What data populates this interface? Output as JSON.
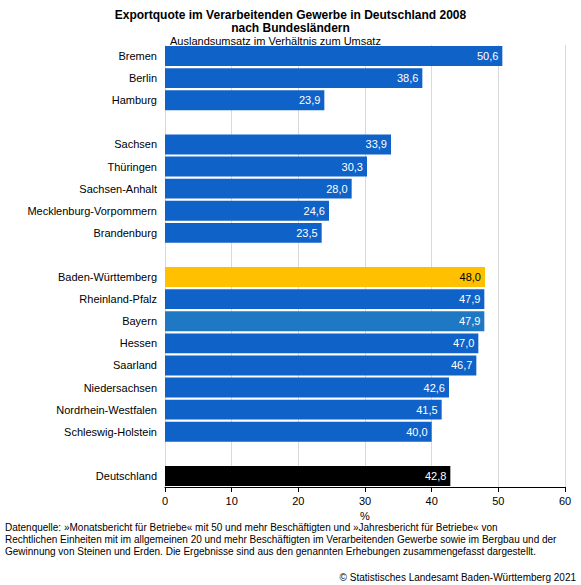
{
  "chart_data": {
    "type": "bar",
    "orientation": "horizontal",
    "title": "Exportquote im Verarbeitenden Gewerbe in Deutschland 2008\nnach Bundesländern",
    "subtitle": "Auslandsumsatz im Verhältnis zum Umsatz",
    "xlabel": "%",
    "categories": [
      "Bremen",
      "Berlin",
      "Hamburg",
      null,
      "Sachsen",
      "Thüringen",
      "Sachsen-Anhalt",
      "Mecklenburg-Vorpommern",
      "Brandenburg",
      null,
      "Baden-Württemberg",
      "Rheinland-Pfalz",
      "Bayern",
      "Hessen",
      "Saarland",
      "Niedersachsen",
      "Nordrhein-Westfalen",
      "Schleswig-Holstein",
      null,
      "Deutschland"
    ],
    "values": [
      50.6,
      38.6,
      23.9,
      null,
      33.9,
      30.3,
      28.0,
      24.6,
      23.5,
      null,
      48.0,
      47.9,
      47.9,
      47.0,
      46.7,
      42.6,
      41.5,
      40.0,
      null,
      42.8
    ],
    "value_labels": [
      "50,6",
      "38,6",
      "23,9",
      null,
      "33,9",
      "30,3",
      "28,0",
      "24,6",
      "23,5",
      null,
      "48,0",
      "47,9",
      "47,9",
      "47,0",
      "46,7",
      "42,6",
      "41,5",
      "40,0",
      null,
      "42,8"
    ],
    "colors": [
      "#0f62c8",
      "#0f62c8",
      "#0f62c8",
      null,
      "#0f62c8",
      "#0f62c8",
      "#0f62c8",
      "#0f62c8",
      "#0f62c8",
      null,
      "#ffc000",
      "#0f62c8",
      "#1f78c4",
      "#0f62c8",
      "#0f62c8",
      "#0f62c8",
      "#0f62c8",
      "#0f62c8",
      null,
      "#000000"
    ],
    "data_labels": true,
    "xlim": [
      0,
      60
    ],
    "xticks": [
      0,
      10,
      20,
      30,
      40,
      50,
      60
    ],
    "grid": true,
    "source": "Datenquelle: »Monatsbericht für Betriebe« mit 50 und mehr Beschäftigten und »Jahresbericht für Betriebe« von Rechtlichen Einheiten mit im allgemeinen 20 und mehr Beschäftigten im Verarbeitenden Gewerbe sowie im Bergbau und der Gewinnung von Steinen und Erden. Die Ergebnisse sind aus den genannten Erhebungen zusammengefasst dargestellt.",
    "copyright": "© Statistisches Landesamt Baden-Württemberg 2021"
  }
}
